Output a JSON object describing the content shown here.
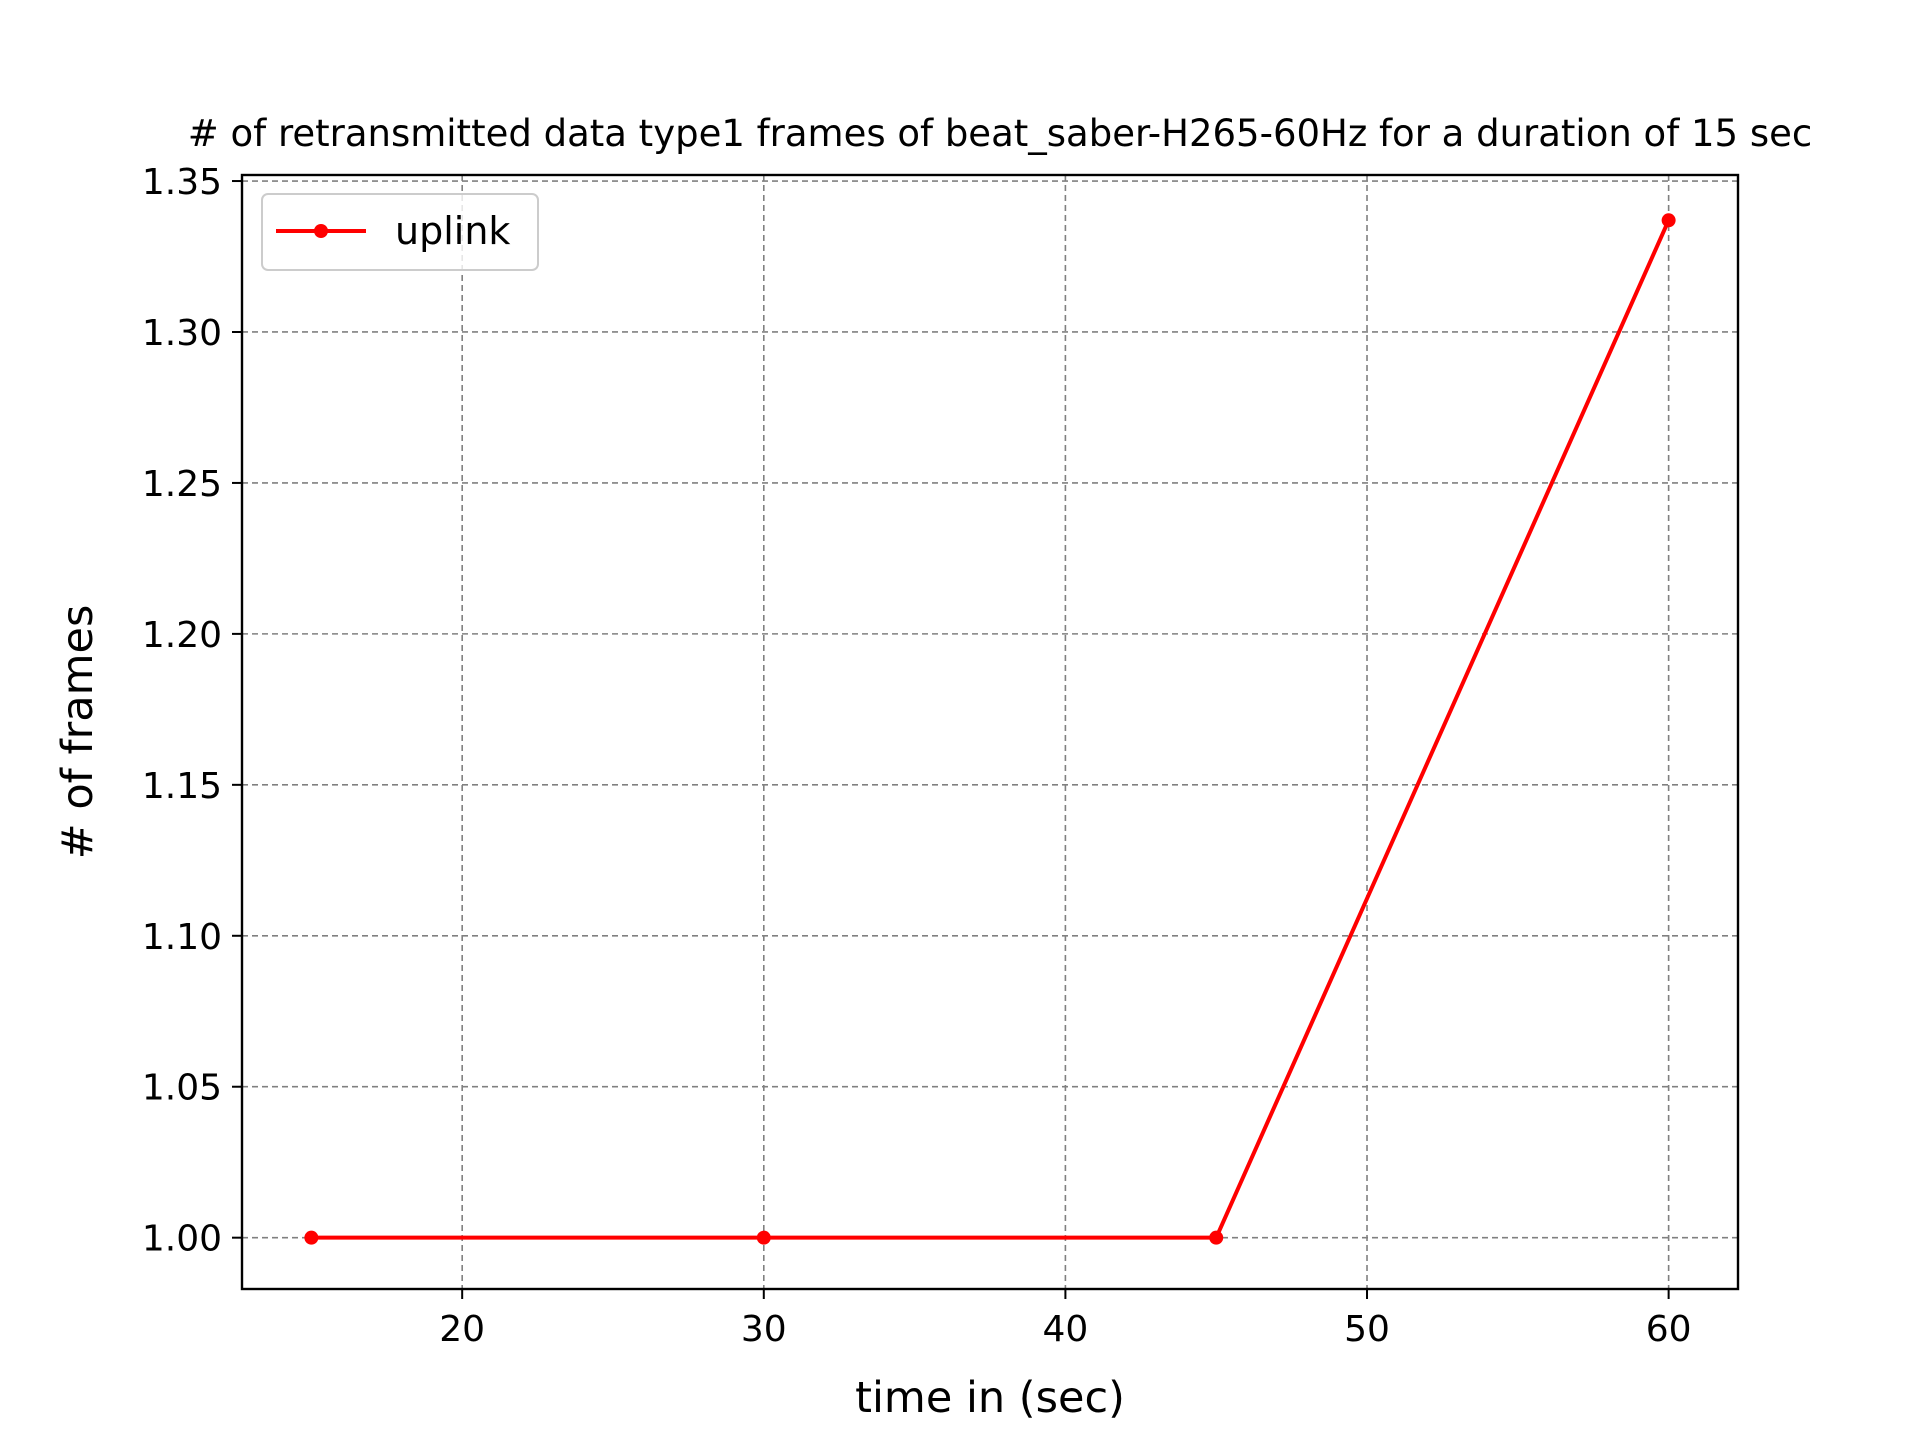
{
  "chart_data": {
    "type": "line",
    "title": "# of retransmitted data type1 frames of beat_saber-H265-60Hz for a duration of 15 sec",
    "xlabel": "time in (sec)",
    "ylabel": "# of frames",
    "xlim": [
      12.7,
      62.3
    ],
    "ylim": [
      0.983,
      1.352
    ],
    "xticks": [
      20,
      30,
      40,
      50,
      60
    ],
    "yticks": [
      1.0,
      1.05,
      1.1,
      1.15,
      1.2,
      1.25,
      1.3,
      1.35
    ],
    "xtick_labels": [
      "20",
      "30",
      "40",
      "50",
      "60"
    ],
    "ytick_labels": [
      "1.00",
      "1.05",
      "1.10",
      "1.15",
      "1.20",
      "1.25",
      "1.30",
      "1.35"
    ],
    "grid": true,
    "legend_position": "upper-left",
    "series": [
      {
        "name": "uplink",
        "color": "#ff0000",
        "marker": "circle",
        "x": [
          15,
          30,
          45,
          60
        ],
        "y": [
          1.0,
          1.0,
          1.0,
          1.337
        ]
      }
    ]
  }
}
